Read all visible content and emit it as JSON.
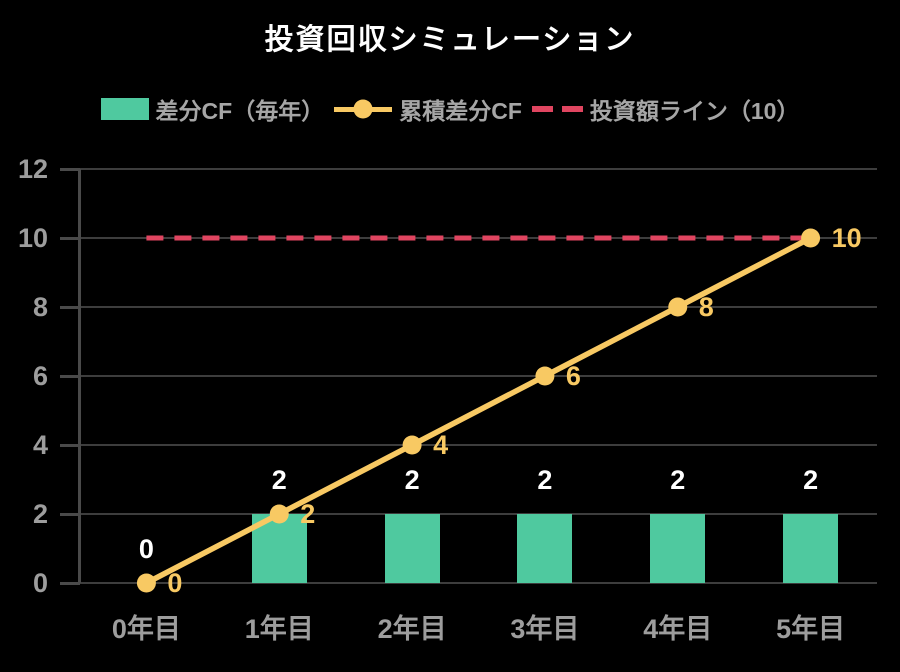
{
  "chart_data": {
    "type": "combo",
    "title": "投資回収シミュレーション",
    "categories": [
      "0年目",
      "1年目",
      "2年目",
      "3年目",
      "4年目",
      "5年目"
    ],
    "series": [
      {
        "name": "差分CF（毎年）",
        "type": "bar",
        "color": "#4fc99f",
        "values": [
          0,
          2,
          2,
          2,
          2,
          2
        ],
        "data_labels": [
          "0",
          "2",
          "2",
          "2",
          "2",
          "2"
        ],
        "data_label_color": "#ffffff"
      },
      {
        "name": "累積差分CF",
        "type": "line",
        "marker": "circle",
        "color": "#f8c963",
        "values": [
          0,
          2,
          4,
          6,
          8,
          10
        ],
        "data_labels": [
          "0",
          "2",
          "4",
          "6",
          "8",
          "10"
        ],
        "data_label_color": "#f8c963"
      },
      {
        "name": "投資額ライン（10）",
        "type": "hline",
        "style": "dashed",
        "color": "#e04560",
        "value": 10
      }
    ],
    "ylim": [
      0,
      12
    ],
    "y_ticks": [
      0,
      2,
      4,
      6,
      8,
      10,
      12
    ],
    "y_tick_labels": [
      "0",
      "2",
      "4",
      "6",
      "8",
      "10",
      "12"
    ],
    "grid": true,
    "legend_position": "top"
  },
  "theme": {
    "background": "#000000",
    "title_color": "#ffffff",
    "legend_text_color": "#a6a6a6",
    "axis_text_color": "#9d9d9d",
    "grid_color": "#3d3d3d",
    "spine_color": "#4a4a4a"
  }
}
